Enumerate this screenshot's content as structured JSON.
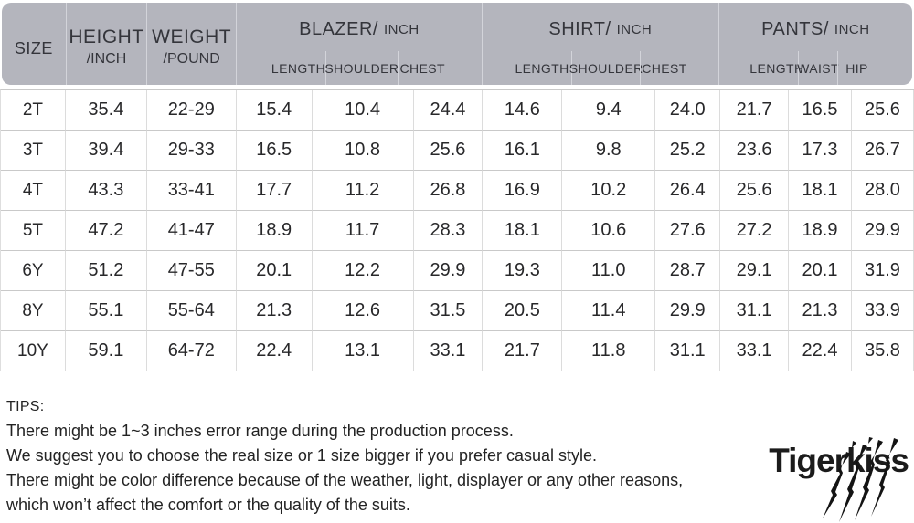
{
  "table": {
    "header": {
      "size": "SIZE",
      "height": {
        "main": "HEIGHT",
        "sub": "/INCH"
      },
      "weight": {
        "main": "WEIGHT",
        "sub": "/POUND"
      },
      "groups": [
        {
          "name": "BLAZER/",
          "unit": "INCH",
          "columns": [
            "LENGTH",
            "SHOULDER",
            "CHEST"
          ]
        },
        {
          "name": "SHIRT/",
          "unit": "INCH",
          "columns": [
            "LENGTH",
            "SHOULDER",
            "CHEST"
          ]
        },
        {
          "name": "PANTS/",
          "unit": "INCH",
          "columns": [
            "LENGTH",
            "WAIST",
            "HIP"
          ]
        }
      ]
    },
    "rows": [
      {
        "size": "2T",
        "values": [
          "35.4",
          "22-29",
          "15.4",
          "10.4",
          "24.4",
          "14.6",
          "9.4",
          "24.0",
          "21.7",
          "16.5",
          "25.6"
        ]
      },
      {
        "size": "3T",
        "values": [
          "39.4",
          "29-33",
          "16.5",
          "10.8",
          "25.6",
          "16.1",
          "9.8",
          "25.2",
          "23.6",
          "17.3",
          "26.7"
        ]
      },
      {
        "size": "4T",
        "values": [
          "43.3",
          "33-41",
          "17.7",
          "11.2",
          "26.8",
          "16.9",
          "10.2",
          "26.4",
          "25.6",
          "18.1",
          "28.0"
        ]
      },
      {
        "size": "5T",
        "values": [
          "47.2",
          "41-47",
          "18.9",
          "11.7",
          "28.3",
          "18.1",
          "10.6",
          "27.6",
          "27.2",
          "18.9",
          "29.9"
        ]
      },
      {
        "size": "6Y",
        "values": [
          "51.2",
          "47-55",
          "20.1",
          "12.2",
          "29.9",
          "19.3",
          "11.0",
          "28.7",
          "29.1",
          "20.1",
          "31.9"
        ]
      },
      {
        "size": "8Y",
        "values": [
          "55.1",
          "55-64",
          "21.3",
          "12.6",
          "31.5",
          "20.5",
          "11.4",
          "29.9",
          "31.1",
          "21.3",
          "33.9"
        ]
      },
      {
        "size": "10Y",
        "values": [
          "59.1",
          "64-72",
          "22.4",
          "13.1",
          "33.1",
          "21.7",
          "11.8",
          "31.1",
          "33.1",
          "22.4",
          "35.8"
        ]
      }
    ]
  },
  "tips": {
    "title": "TIPS:",
    "lines": [
      "There might be 1~3 inches error range during the production process.",
      "We suggest you to choose the real size or 1 size bigger if you prefer casual style.",
      "There might be color difference because of the weather, light, displayer or any other reasons,",
      "which won’t affect the comfort or the quality of the suits."
    ]
  },
  "logo": {
    "text": "Tigerkiss"
  },
  "colors": {
    "header_background": "#b4b5bd",
    "header_divider": "#d3d4da",
    "row_line": "#c9c9c9",
    "column_line": "#dcdcdc",
    "logo_color": "#1b1b1b"
  }
}
